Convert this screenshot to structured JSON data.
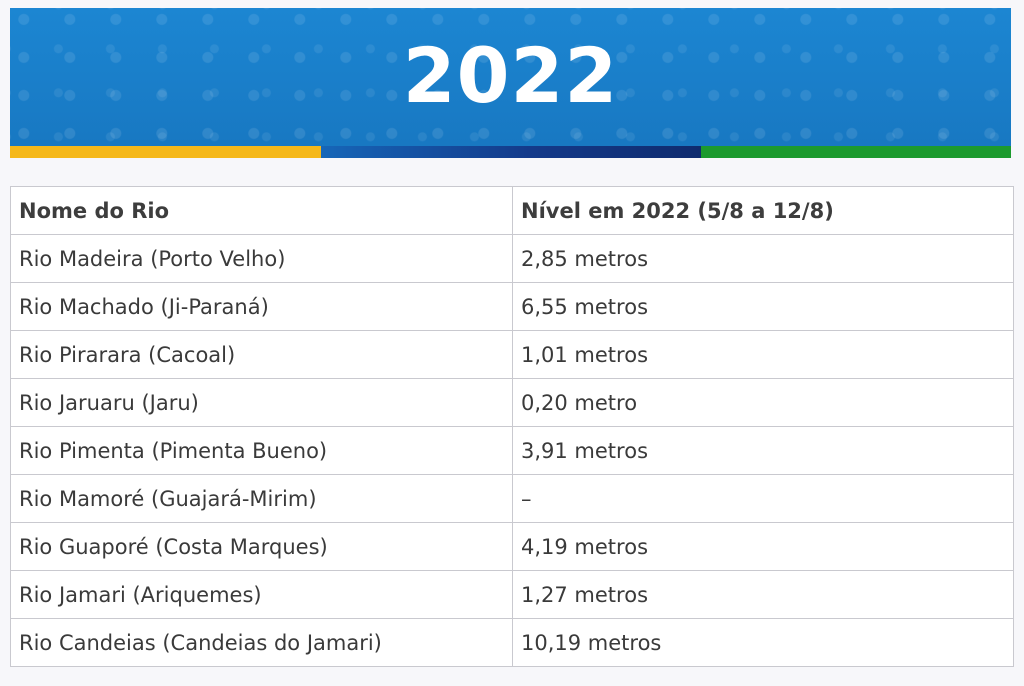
{
  "banner": {
    "year": "2022",
    "colors": {
      "blue": "#1d80cc",
      "yellow": "#f5b81a",
      "navy": "#143a8a",
      "green": "#1c9a2e"
    }
  },
  "table": {
    "headers": [
      "Nome do Rio",
      "Nível em 2022 (5/8 a 12/8)"
    ],
    "rows": [
      [
        "Rio Madeira (Porto Velho)",
        "2,85 metros"
      ],
      [
        "Rio Machado (Ji-Paraná)",
        "6,55 metros"
      ],
      [
        "Rio Pirarara (Cacoal)",
        "1,01 metros"
      ],
      [
        "Rio Jaruaru (Jaru)",
        "0,20 metro"
      ],
      [
        "Rio Pimenta (Pimenta Bueno)",
        "3,91 metros"
      ],
      [
        "Rio Mamoré (Guajará-Mirim)",
        "–"
      ],
      [
        "Rio Guaporé (Costa Marques)",
        "4,19 metros"
      ],
      [
        "Rio Jamari (Ariquemes)",
        "1,27 metros"
      ],
      [
        "Rio Candeias (Candeias do Jamari)",
        "10,19 metros"
      ]
    ]
  }
}
